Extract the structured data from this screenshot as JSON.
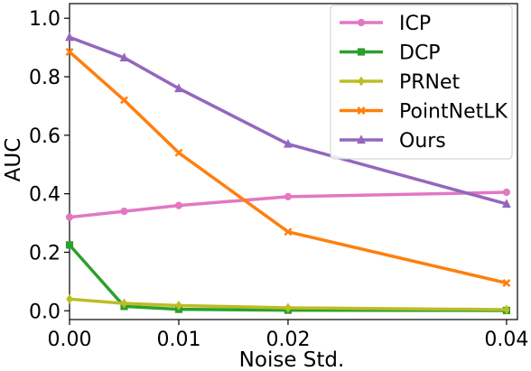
{
  "chart_data": {
    "type": "line",
    "xlabel": "Noise Std.",
    "ylabel": "AUC",
    "xlim": [
      0.0,
      0.041
    ],
    "ylim": [
      -0.03,
      1.05
    ],
    "xticks": [
      0.0,
      0.01,
      0.02,
      0.04
    ],
    "xtick_labels": [
      "0.00",
      "0.01",
      "0.02",
      "0.04"
    ],
    "yticks": [
      0.0,
      0.2,
      0.4,
      0.6,
      0.8,
      1.0
    ],
    "ytick_labels": [
      "0.0",
      "0.2",
      "0.4",
      "0.6",
      "0.8",
      "1.0"
    ],
    "grid": false,
    "legend_position": "top-right",
    "x": [
      0.0,
      0.005,
      0.01,
      0.02,
      0.04
    ],
    "series": [
      {
        "name": "ICP",
        "color": "#e377c2",
        "marker": "circle",
        "values": [
          0.32,
          0.34,
          0.36,
          0.39,
          0.405
        ]
      },
      {
        "name": "DCP",
        "color": "#2ca02c",
        "marker": "square",
        "values": [
          0.225,
          0.015,
          0.005,
          0.002,
          0.001
        ]
      },
      {
        "name": "PRNet",
        "color": "#bcbd22",
        "marker": "diamond",
        "values": [
          0.04,
          0.025,
          0.018,
          0.01,
          0.004
        ]
      },
      {
        "name": "PointNetLK",
        "color": "#ff7f0e",
        "marker": "x",
        "values": [
          0.885,
          0.72,
          0.54,
          0.27,
          0.095
        ]
      },
      {
        "name": "Ours",
        "color": "#9467bd",
        "marker": "triangle",
        "values": [
          0.935,
          0.865,
          0.76,
          0.57,
          0.365
        ]
      }
    ]
  }
}
